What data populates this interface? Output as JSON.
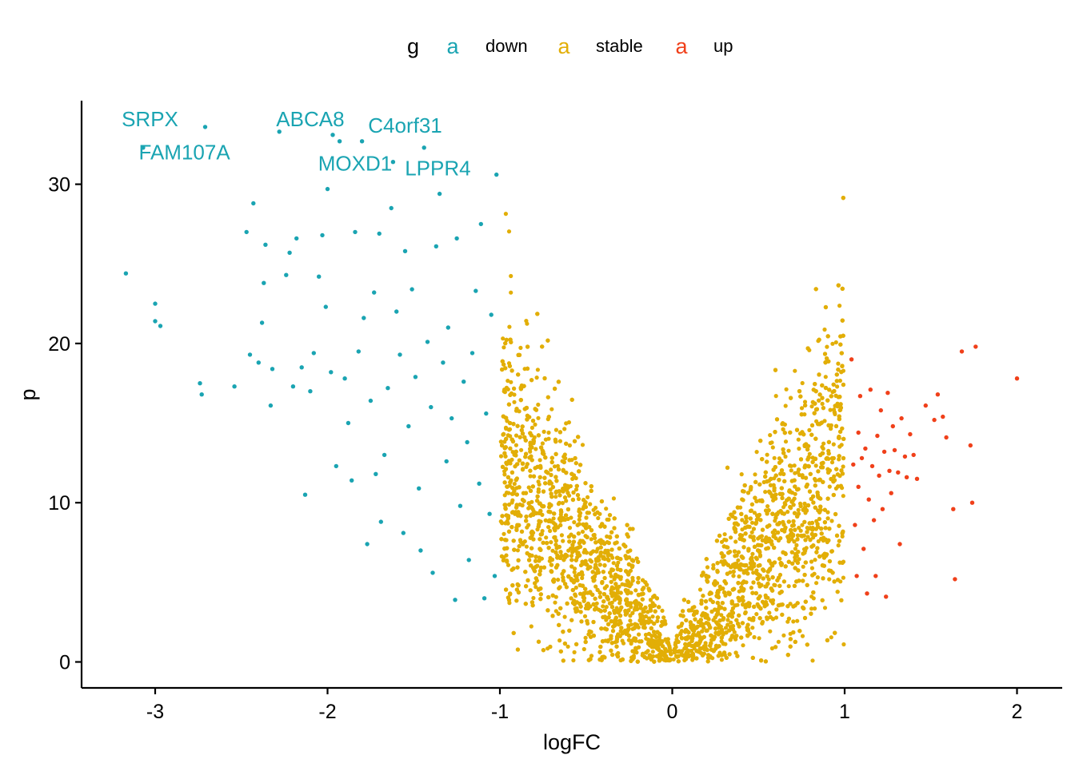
{
  "chart_data": {
    "type": "scatter",
    "xlabel": "logFC",
    "ylabel": "p",
    "xlim": [
      -3.45,
      2.27
    ],
    "ylim": [
      -1.6,
      35.2
    ],
    "x_ticks": [
      -3,
      -2,
      -1,
      0,
      1,
      2
    ],
    "x_tick_labels": [
      "-3",
      "-2",
      "-1",
      "0",
      "1",
      "2"
    ],
    "y_ticks": [
      0,
      10,
      20,
      30
    ],
    "y_tick_labels": [
      "0",
      "10",
      "20",
      "30"
    ],
    "grid": false,
    "legend": {
      "title": "g",
      "placement": "top",
      "key_glyph": "a",
      "entries": [
        {
          "group": "down",
          "label": "down",
          "color": "#1aa4b2"
        },
        {
          "group": "stable",
          "label": "stable",
          "color": "#e2ae06"
        },
        {
          "group": "up",
          "label": "up",
          "color": "#f0401a"
        }
      ]
    },
    "colors": {
      "down": "#1aa4b2",
      "stable": "#e2ae06",
      "up": "#f0401a"
    },
    "background_cloud": {
      "group": "stable",
      "description_of_shape": "V-shaped cloud of non-significant genes, minimum at logFC 0",
      "count": 5000,
      "x_range": [
        -1,
        1
      ],
      "p_max": 30
    },
    "series": [
      {
        "name": "down",
        "points": [
          {
            "x": -3.17,
            "y": 24.4
          },
          {
            "x": -3.07,
            "y": 32.3
          },
          {
            "x": -3.0,
            "y": 22.5
          },
          {
            "x": -3.0,
            "y": 21.4
          },
          {
            "x": -2.97,
            "y": 21.1
          },
          {
            "x": -2.74,
            "y": 17.5
          },
          {
            "x": -2.73,
            "y": 16.8
          },
          {
            "x": -2.71,
            "y": 33.6
          },
          {
            "x": -2.54,
            "y": 17.3
          },
          {
            "x": -2.47,
            "y": 27.0
          },
          {
            "x": -2.45,
            "y": 19.3
          },
          {
            "x": -2.43,
            "y": 28.8
          },
          {
            "x": -2.4,
            "y": 18.8
          },
          {
            "x": -2.38,
            "y": 21.3
          },
          {
            "x": -2.37,
            "y": 23.8
          },
          {
            "x": -2.36,
            "y": 26.2
          },
          {
            "x": -2.33,
            "y": 16.1
          },
          {
            "x": -2.32,
            "y": 18.4
          },
          {
            "x": -2.28,
            "y": 33.3
          },
          {
            "x": -2.24,
            "y": 24.3
          },
          {
            "x": -2.22,
            "y": 25.7
          },
          {
            "x": -2.2,
            "y": 17.3
          },
          {
            "x": -2.18,
            "y": 26.6
          },
          {
            "x": -2.15,
            "y": 18.5
          },
          {
            "x": -2.13,
            "y": 10.5
          },
          {
            "x": -2.1,
            "y": 17.0
          },
          {
            "x": -2.08,
            "y": 19.4
          },
          {
            "x": -2.05,
            "y": 24.2
          },
          {
            "x": -2.03,
            "y": 26.8
          },
          {
            "x": -2.01,
            "y": 22.3
          },
          {
            "x": -2.0,
            "y": 29.7
          },
          {
            "x": -1.98,
            "y": 18.2
          },
          {
            "x": -1.97,
            "y": 33.1
          },
          {
            "x": -1.95,
            "y": 12.3
          },
          {
            "x": -1.93,
            "y": 32.7
          },
          {
            "x": -1.9,
            "y": 17.8
          },
          {
            "x": -1.88,
            "y": 15.0
          },
          {
            "x": -1.86,
            "y": 11.4
          },
          {
            "x": -1.84,
            "y": 27.0
          },
          {
            "x": -1.82,
            "y": 19.5
          },
          {
            "x": -1.8,
            "y": 32.7
          },
          {
            "x": -1.79,
            "y": 21.6
          },
          {
            "x": -1.77,
            "y": 7.4
          },
          {
            "x": -1.75,
            "y": 16.4
          },
          {
            "x": -1.73,
            "y": 23.2
          },
          {
            "x": -1.72,
            "y": 11.8
          },
          {
            "x": -1.7,
            "y": 26.9
          },
          {
            "x": -1.69,
            "y": 8.8
          },
          {
            "x": -1.67,
            "y": 13.0
          },
          {
            "x": -1.65,
            "y": 17.2
          },
          {
            "x": -1.63,
            "y": 28.5
          },
          {
            "x": -1.62,
            "y": 31.4
          },
          {
            "x": -1.6,
            "y": 22.0
          },
          {
            "x": -1.58,
            "y": 19.3
          },
          {
            "x": -1.56,
            "y": 8.1
          },
          {
            "x": -1.55,
            "y": 25.8
          },
          {
            "x": -1.53,
            "y": 14.8
          },
          {
            "x": -1.51,
            "y": 23.4
          },
          {
            "x": -1.49,
            "y": 17.9
          },
          {
            "x": -1.47,
            "y": 10.9
          },
          {
            "x": -1.46,
            "y": 7.0
          },
          {
            "x": -1.44,
            "y": 32.3
          },
          {
            "x": -1.42,
            "y": 20.1
          },
          {
            "x": -1.4,
            "y": 16.0
          },
          {
            "x": -1.39,
            "y": 5.6
          },
          {
            "x": -1.37,
            "y": 26.1
          },
          {
            "x": -1.35,
            "y": 29.4
          },
          {
            "x": -1.33,
            "y": 18.8
          },
          {
            "x": -1.31,
            "y": 12.6
          },
          {
            "x": -1.3,
            "y": 21.0
          },
          {
            "x": -1.28,
            "y": 15.3
          },
          {
            "x": -1.26,
            "y": 3.9
          },
          {
            "x": -1.25,
            "y": 26.6
          },
          {
            "x": -1.23,
            "y": 9.8
          },
          {
            "x": -1.21,
            "y": 17.6
          },
          {
            "x": -1.19,
            "y": 13.8
          },
          {
            "x": -1.18,
            "y": 6.4
          },
          {
            "x": -1.16,
            "y": 19.4
          },
          {
            "x": -1.14,
            "y": 23.3
          },
          {
            "x": -1.12,
            "y": 11.2
          },
          {
            "x": -1.11,
            "y": 27.5
          },
          {
            "x": -1.09,
            "y": 4.0
          },
          {
            "x": -1.08,
            "y": 15.6
          },
          {
            "x": -1.06,
            "y": 9.3
          },
          {
            "x": -1.05,
            "y": 21.8
          },
          {
            "x": -1.03,
            "y": 5.4
          },
          {
            "x": -1.02,
            "y": 30.6
          }
        ]
      },
      {
        "name": "up",
        "points": [
          {
            "x": 1.04,
            "y": 19.0
          },
          {
            "x": 1.05,
            "y": 12.4
          },
          {
            "x": 1.06,
            "y": 8.6
          },
          {
            "x": 1.07,
            "y": 5.4
          },
          {
            "x": 1.08,
            "y": 14.4
          },
          {
            "x": 1.08,
            "y": 11.0
          },
          {
            "x": 1.09,
            "y": 16.7
          },
          {
            "x": 1.1,
            "y": 12.8
          },
          {
            "x": 1.11,
            "y": 7.1
          },
          {
            "x": 1.12,
            "y": 13.4
          },
          {
            "x": 1.13,
            "y": 4.3
          },
          {
            "x": 1.14,
            "y": 10.2
          },
          {
            "x": 1.15,
            "y": 17.1
          },
          {
            "x": 1.16,
            "y": 12.3
          },
          {
            "x": 1.17,
            "y": 8.9
          },
          {
            "x": 1.18,
            "y": 5.4
          },
          {
            "x": 1.19,
            "y": 14.2
          },
          {
            "x": 1.2,
            "y": 11.7
          },
          {
            "x": 1.21,
            "y": 15.8
          },
          {
            "x": 1.22,
            "y": 9.6
          },
          {
            "x": 1.23,
            "y": 13.2
          },
          {
            "x": 1.24,
            "y": 4.1
          },
          {
            "x": 1.25,
            "y": 16.9
          },
          {
            "x": 1.26,
            "y": 12.0
          },
          {
            "x": 1.27,
            "y": 10.6
          },
          {
            "x": 1.28,
            "y": 14.8
          },
          {
            "x": 1.29,
            "y": 13.3
          },
          {
            "x": 1.31,
            "y": 11.9
          },
          {
            "x": 1.32,
            "y": 7.4
          },
          {
            "x": 1.33,
            "y": 15.3
          },
          {
            "x": 1.35,
            "y": 12.9
          },
          {
            "x": 1.36,
            "y": 11.6
          },
          {
            "x": 1.38,
            "y": 14.3
          },
          {
            "x": 1.4,
            "y": 13.0
          },
          {
            "x": 1.42,
            "y": 11.5
          },
          {
            "x": 1.47,
            "y": 16.1
          },
          {
            "x": 1.52,
            "y": 15.2
          },
          {
            "x": 1.54,
            "y": 16.8
          },
          {
            "x": 1.57,
            "y": 15.4
          },
          {
            "x": 1.59,
            "y": 14.1
          },
          {
            "x": 1.63,
            "y": 9.6
          },
          {
            "x": 1.64,
            "y": 5.2
          },
          {
            "x": 1.68,
            "y": 19.5
          },
          {
            "x": 1.73,
            "y": 13.6
          },
          {
            "x": 1.74,
            "y": 10.0
          },
          {
            "x": 1.76,
            "y": 19.8
          },
          {
            "x": 2.0,
            "y": 17.8
          }
        ]
      }
    ],
    "annotations": [
      {
        "text": "SRPX",
        "x": -3.03,
        "y": 34.1,
        "color": "#1aa4b2"
      },
      {
        "text": "FAM107A",
        "x": -2.83,
        "y": 32.0,
        "color": "#1aa4b2"
      },
      {
        "text": "ABCA8",
        "x": -2.1,
        "y": 34.1,
        "color": "#1aa4b2"
      },
      {
        "text": "MOXD1",
        "x": -1.84,
        "y": 31.3,
        "color": "#1aa4b2"
      },
      {
        "text": "C4orf31",
        "x": -1.55,
        "y": 33.7,
        "color": "#1aa4b2"
      },
      {
        "text": "LPPR4",
        "x": -1.36,
        "y": 31.0,
        "color": "#1aa4b2"
      }
    ]
  }
}
